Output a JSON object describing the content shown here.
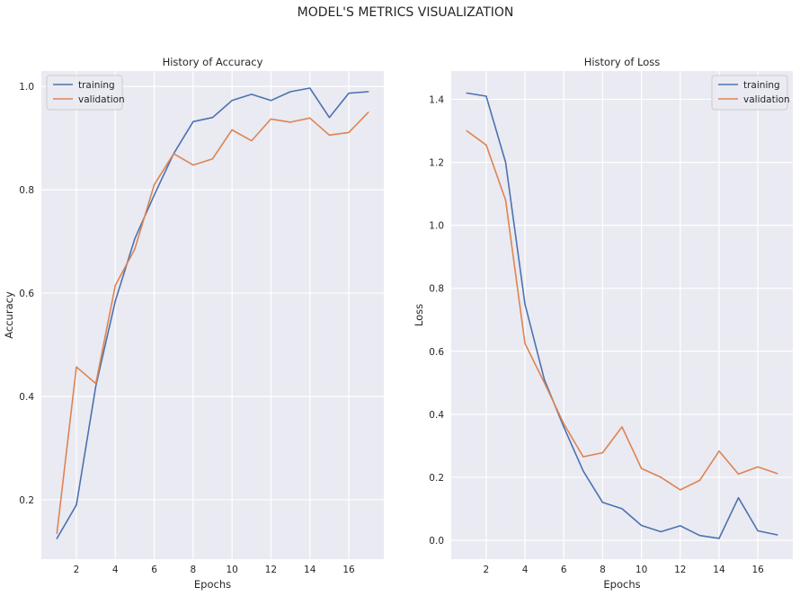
{
  "figure": {
    "title": "MODEL'S METRICS VISUALIZATION",
    "colors": {
      "training": "#4c72b0",
      "validation": "#dd8452",
      "axes_bg": "#eaeaf2",
      "grid": "#ffffff"
    }
  },
  "chart_data": [
    {
      "type": "line",
      "title": "History of Accuracy",
      "xlabel": "Epochs",
      "ylabel": "Accuracy",
      "xlim": [
        0.2,
        17.8
      ],
      "ylim": [
        0.085,
        1.03
      ],
      "xticks": [
        2,
        4,
        6,
        8,
        10,
        12,
        14,
        16
      ],
      "yticks": [
        0.2,
        0.4,
        0.6,
        0.8,
        1.0
      ],
      "ytick_labels": [
        "0.2",
        "0.4",
        "0.6",
        "0.8",
        "1.0"
      ],
      "grid": true,
      "legend": "top-left",
      "x": [
        1,
        2,
        3,
        4,
        5,
        6,
        7,
        8,
        9,
        10,
        11,
        12,
        13,
        14,
        15,
        16,
        17
      ],
      "series": [
        {
          "name": "training",
          "color": "#4c72b0",
          "values": [
            0.125,
            0.19,
            0.42,
            0.585,
            0.705,
            0.79,
            0.87,
            0.932,
            0.94,
            0.973,
            0.985,
            0.973,
            0.99,
            0.997,
            0.94,
            0.987,
            0.99
          ]
        },
        {
          "name": "validation",
          "color": "#dd8452",
          "values": [
            0.135,
            0.457,
            0.425,
            0.615,
            0.685,
            0.81,
            0.87,
            0.848,
            0.86,
            0.916,
            0.895,
            0.937,
            0.931,
            0.939,
            0.906,
            0.911,
            0.95
          ]
        }
      ]
    },
    {
      "type": "line",
      "title": "History of Loss",
      "xlabel": "Epochs",
      "ylabel": "Loss",
      "xlim": [
        0.2,
        17.8
      ],
      "ylim": [
        -0.06,
        1.49
      ],
      "xticks": [
        2,
        4,
        6,
        8,
        10,
        12,
        14,
        16
      ],
      "yticks": [
        0.0,
        0.2,
        0.4,
        0.6,
        0.8,
        1.0,
        1.2,
        1.4
      ],
      "ytick_labels": [
        "0.0",
        "0.2",
        "0.4",
        "0.6",
        "0.8",
        "1.0",
        "1.2",
        "1.4"
      ],
      "grid": true,
      "legend": "top-right",
      "x": [
        1,
        2,
        3,
        4,
        5,
        6,
        7,
        8,
        9,
        10,
        11,
        12,
        13,
        14,
        15,
        16,
        17
      ],
      "series": [
        {
          "name": "training",
          "color": "#4c72b0",
          "values": [
            1.42,
            1.41,
            1.2,
            0.75,
            0.51,
            0.36,
            0.22,
            0.12,
            0.1,
            0.047,
            0.027,
            0.046,
            0.015,
            0.006,
            0.135,
            0.03,
            0.017
          ]
        },
        {
          "name": "validation",
          "color": "#dd8452",
          "values": [
            1.3,
            1.255,
            1.08,
            0.625,
            0.5,
            0.37,
            0.265,
            0.278,
            0.36,
            0.228,
            0.2,
            0.16,
            0.19,
            0.283,
            0.21,
            0.233,
            0.212
          ]
        }
      ]
    }
  ]
}
